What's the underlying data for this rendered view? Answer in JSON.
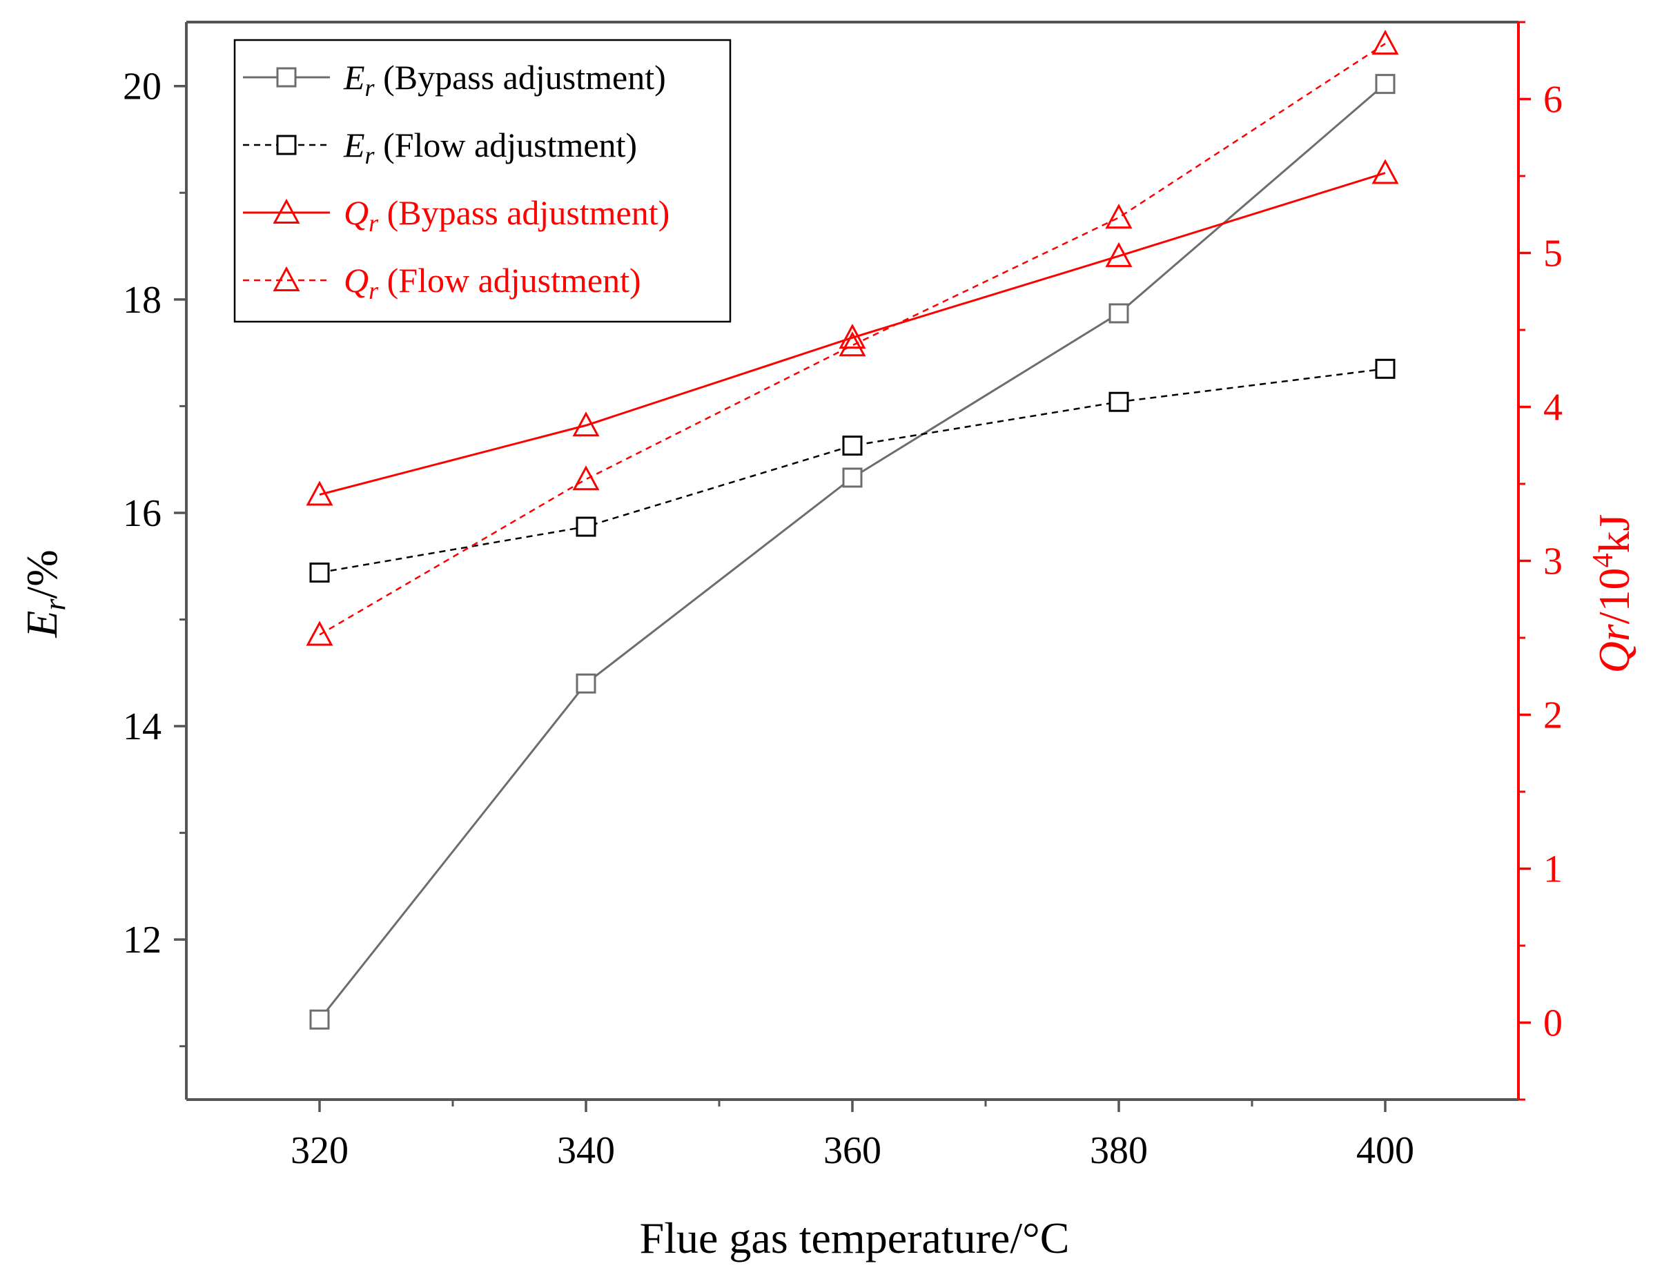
{
  "chart_data": {
    "type": "line",
    "xlabel": "Flue gas temperature/°C",
    "ylabel_left": {
      "symbol": "E",
      "sub": "r",
      "rest": "/%"
    },
    "ylabel_right": {
      "symbol": "Qr",
      "rest": "/10",
      "sup": "4",
      "unit": "kJ"
    },
    "x": [
      320,
      340,
      360,
      380,
      400
    ],
    "xlim": [
      310,
      410
    ],
    "xticks": [
      320,
      340,
      360,
      380,
      400
    ],
    "ylim_left": [
      10.5,
      20.6
    ],
    "yticks_left": [
      12,
      14,
      16,
      18,
      20
    ],
    "ylim_right": [
      -0.5,
      6.5
    ],
    "yticks_right": [
      0,
      1,
      2,
      3,
      4,
      5,
      6
    ],
    "grid": false,
    "legend_position": "top-left",
    "series": [
      {
        "name": "(Bypass adjustment)",
        "symbol": "E",
        "sub": "r",
        "axis": "left",
        "marker": "square",
        "dash": false,
        "color": "#6d6d6d",
        "values": [
          11.25,
          14.4,
          16.33,
          17.87,
          20.02
        ]
      },
      {
        "name": "(Flow adjustment)",
        "symbol": "E",
        "sub": "r",
        "axis": "left",
        "marker": "square",
        "dash": true,
        "color": "#000000",
        "values": [
          15.44,
          15.87,
          16.63,
          17.04,
          17.35
        ]
      },
      {
        "name": "(Bypass adjustment)",
        "symbol": "Q",
        "sub": "r",
        "axis": "right",
        "marker": "triangle",
        "dash": false,
        "color": "#ff0000",
        "values": [
          3.43,
          3.88,
          4.45,
          4.98,
          5.52
        ]
      },
      {
        "name": "(Flow adjustment)",
        "symbol": "Q",
        "sub": "r",
        "axis": "right",
        "marker": "triangle",
        "dash": true,
        "color": "#ff0000",
        "values": [
          2.52,
          3.53,
          4.4,
          5.23,
          6.36
        ]
      }
    ],
    "colors": {
      "left_axis": "#555555",
      "right_axis": "#ff0000"
    }
  }
}
